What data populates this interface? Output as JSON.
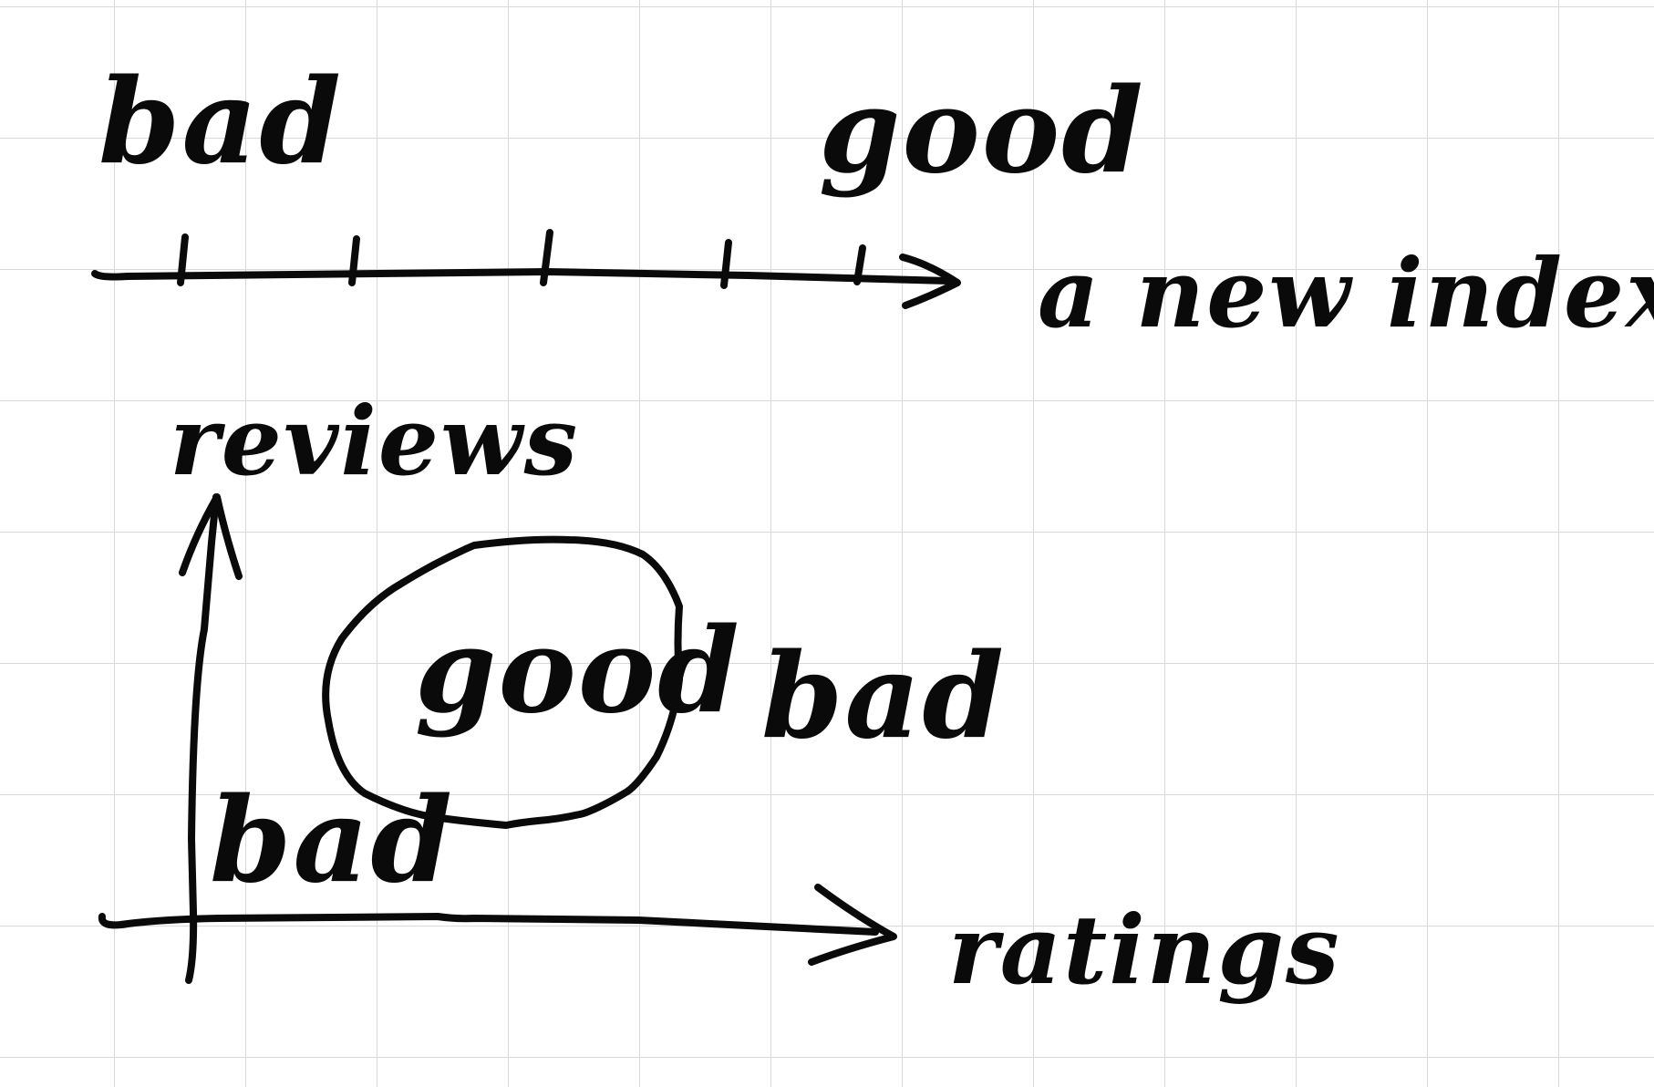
{
  "index_scale": {
    "left_label": "bad",
    "right_label": "good",
    "axis_label": "a new index",
    "tick_count": 5
  },
  "scatter_sketch": {
    "y_axis_label": "reviews",
    "x_axis_label": "ratings",
    "inside_region_label": "good",
    "right_region_label": "bad",
    "bottom_left_label": "bad"
  },
  "colors": {
    "ink": "#0a0a0a",
    "grid": "#d9d9d9",
    "paper": "#ffffff"
  }
}
